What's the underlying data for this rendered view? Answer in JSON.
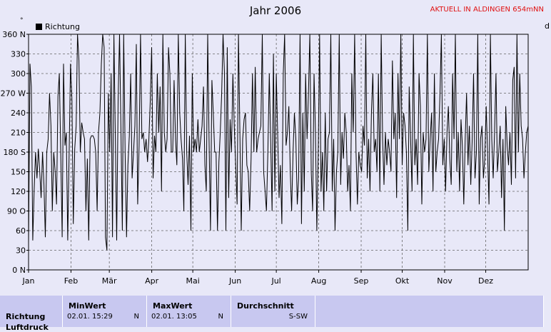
{
  "header": {
    "title": "Jahr 2006",
    "station": "AKTUELL IN ALDINGEN 654mNN",
    "unit_mark": "°",
    "right_cut_label": "d"
  },
  "colors": {
    "line": "#000000",
    "plot_bg": "#e8e8f8",
    "grid": "#666666",
    "station": "#e01010",
    "panel": "#c8c8f0"
  },
  "chart_data": {
    "type": "line",
    "legend": [
      "Richtung"
    ],
    "legend_position": "top-left",
    "grid": true,
    "xlim": [
      1,
      366
    ],
    "ylim": [
      0,
      360
    ],
    "x_ticks": [
      {
        "day": 1,
        "label": "Jan"
      },
      {
        "day": 32,
        "label": "Feb"
      },
      {
        "day": 60,
        "label": "Mär"
      },
      {
        "day": 91,
        "label": "Apr"
      },
      {
        "day": 121,
        "label": "Mai"
      },
      {
        "day": 152,
        "label": "Jun"
      },
      {
        "day": 182,
        "label": "Jul"
      },
      {
        "day": 213,
        "label": "Aug"
      },
      {
        "day": 244,
        "label": "Sep"
      },
      {
        "day": 274,
        "label": "Okt"
      },
      {
        "day": 305,
        "label": "Nov"
      },
      {
        "day": 335,
        "label": "Dez"
      }
    ],
    "y_ticks": [
      {
        "value": 0,
        "label": "0 N"
      },
      {
        "value": 30,
        "label": "30"
      },
      {
        "value": 60,
        "label": "60"
      },
      {
        "value": 90,
        "label": "90 O"
      },
      {
        "value": 120,
        "label": "120"
      },
      {
        "value": 150,
        "label": "150"
      },
      {
        "value": 180,
        "label": "180 S"
      },
      {
        "value": 210,
        "label": "210"
      },
      {
        "value": 240,
        "label": "240"
      },
      {
        "value": 270,
        "label": "270 W"
      },
      {
        "value": 300,
        "label": "300"
      },
      {
        "value": 330,
        "label": "330"
      },
      {
        "value": 360,
        "label": "360 N"
      }
    ],
    "series": [
      {
        "name": "Richtung",
        "values": [
          40,
          315,
          280,
          45,
          120,
          180,
          140,
          185,
          150,
          110,
          180,
          130,
          50,
          180,
          200,
          270,
          220,
          90,
          180,
          150,
          100,
          265,
          300,
          180,
          50,
          315,
          190,
          210,
          45,
          180,
          315,
          260,
          70,
          185,
          220,
          360,
          320,
          180,
          225,
          210,
          200,
          90,
          170,
          45,
          200,
          205,
          205,
          200,
          180,
          90,
          210,
          240,
          315,
          360,
          340,
          50,
          30,
          270,
          180,
          300,
          50,
          360,
          200,
          45,
          260,
          360,
          220,
          60,
          360,
          180,
          50,
          160,
          205,
          300,
          140,
          180,
          220,
          345,
          100,
          190,
          360,
          200,
          210,
          180,
          200,
          165,
          200,
          260,
          340,
          140,
          205,
          180,
          300,
          210,
          280,
          120,
          360,
          210,
          180,
          200,
          340,
          300,
          180,
          180,
          290,
          200,
          160,
          360,
          240,
          200,
          170,
          90,
          360,
          180,
          130,
          205,
          60,
          300,
          180,
          200,
          180,
          230,
          180,
          200,
          220,
          280,
          160,
          120,
          360,
          200,
          60,
          290,
          240,
          180,
          180,
          60,
          165,
          210,
          270,
          360,
          300,
          60,
          340,
          110,
          230,
          180,
          300,
          220,
          160,
          100,
          360,
          210,
          60,
          200,
          230,
          240,
          160,
          150,
          90,
          170,
          300,
          180,
          310,
          180,
          200,
          210,
          220,
          360,
          150,
          120,
          90,
          180,
          300,
          200,
          90,
          330,
          120,
          300,
          210,
          110,
          160,
          70,
          300,
          360,
          190,
          210,
          250,
          150,
          90,
          180,
          240,
          200,
          100,
          140,
          360,
          70,
          240,
          120,
          300,
          200,
          270,
          360,
          150,
          90,
          300,
          210,
          60,
          180,
          360,
          120,
          180,
          90,
          240,
          120,
          200,
          210,
          360,
          120,
          200,
          60,
          150,
          180,
          360,
          130,
          210,
          170,
          240,
          210,
          120,
          160,
          90,
          300,
          210,
          360,
          180,
          100,
          180,
          160,
          150,
          220,
          190,
          360,
          140,
          200,
          120,
          240,
          300,
          180,
          200,
          150,
          300,
          120,
          360,
          200,
          130,
          210,
          160,
          200,
          180,
          150,
          320,
          200,
          240,
          110,
          300,
          200,
          360,
          160,
          240,
          220,
          180,
          60,
          280,
          200,
          120,
          360,
          160,
          200,
          130,
          300,
          250,
          100,
          210,
          180,
          200,
          360,
          150,
          200,
          240,
          120,
          300,
          150,
          180,
          200,
          270,
          360,
          160,
          200,
          120,
          210,
          250,
          170,
          130,
          300,
          200,
          360,
          150,
          210,
          120,
          230,
          190,
          100,
          200,
          270,
          160,
          220,
          130,
          200,
          300,
          140,
          180,
          360,
          100,
          200,
          220,
          140,
          170,
          250,
          180,
          100,
          360,
          200,
          140,
          210,
          300,
          150,
          180,
          220,
          110,
          200,
          60,
          250,
          190,
          160,
          210,
          130,
          290,
          310,
          140,
          360,
          180,
          300,
          220,
          200,
          140,
          180,
          210,
          220
        ]
      }
    ]
  },
  "table": {
    "row_label": "Richtung",
    "row_label_next": "Luftdruck",
    "min": {
      "header": "MinWert",
      "date": "02.01. 15:29",
      "dir": "N"
    },
    "max": {
      "header": "MaxWert",
      "date": "02.01. 13:05",
      "dir": "N"
    },
    "avg": {
      "header": "Durchschnitt",
      "value": "S-SW"
    }
  }
}
